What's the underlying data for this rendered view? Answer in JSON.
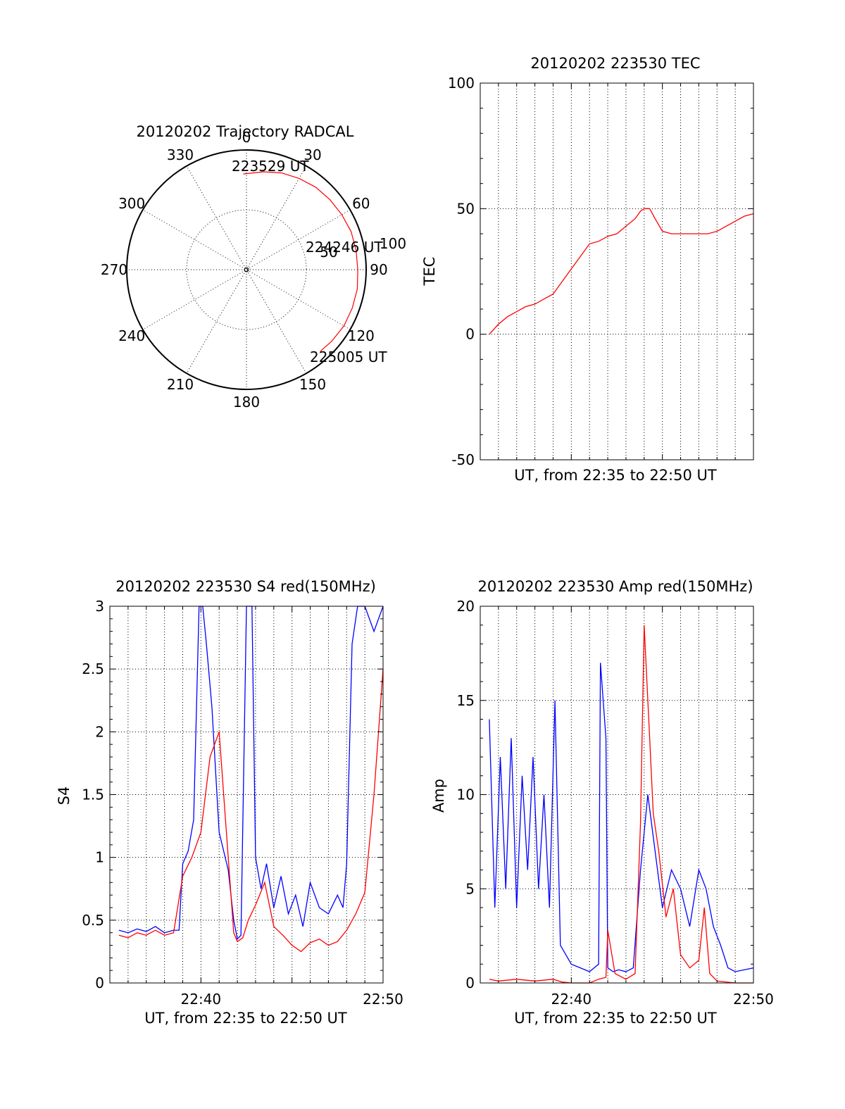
{
  "colors": {
    "red": "#ff0000",
    "blue": "#0000ff",
    "axis": "#000000"
  },
  "chart_data": [
    {
      "type": "polar",
      "title": "20120202 Trajectory RADCAL",
      "azimuth_labels": [
        "0",
        "30",
        "60",
        "90",
        "120",
        "150",
        "180",
        "210",
        "240",
        "270",
        "300",
        "330"
      ],
      "radius_labels": [
        "50",
        "100"
      ],
      "rlim": [
        0,
        100
      ],
      "grid": true,
      "start_label": "223529 UT",
      "mid_label": "224246 UT",
      "end_label": "225005 UT",
      "series": [
        {
          "color": "red",
          "points": [
            {
              "az": 358,
              "r": 80
            },
            {
              "az": 10,
              "r": 83
            },
            {
              "az": 20,
              "r": 86
            },
            {
              "az": 30,
              "r": 88
            },
            {
              "az": 40,
              "r": 90
            },
            {
              "az": 50,
              "r": 91
            },
            {
              "az": 60,
              "r": 92
            },
            {
              "az": 70,
              "r": 93
            },
            {
              "az": 80,
              "r": 93
            },
            {
              "az": 90,
              "r": 93
            },
            {
              "az": 100,
              "r": 94
            },
            {
              "az": 110,
              "r": 94
            },
            {
              "az": 120,
              "r": 94
            },
            {
              "az": 130,
              "r": 93
            },
            {
              "az": 138,
              "r": 92
            }
          ]
        }
      ]
    },
    {
      "type": "line",
      "title": "20120202 223530 TEC",
      "xlabel": "UT, from 22:35 to 22:50 UT",
      "ylabel": "TEC",
      "xlim": [
        0,
        15
      ],
      "ylim": [
        -50,
        100
      ],
      "yticks": [
        "-50",
        "0",
        "50",
        "100"
      ],
      "xticks": [],
      "grid": true,
      "series": [
        {
          "color": "red",
          "x": [
            0.5,
            1.0,
            1.5,
            2.0,
            2.5,
            3.0,
            3.5,
            4.0,
            4.5,
            5.0,
            5.5,
            6.0,
            6.5,
            7.0,
            7.5,
            8.0,
            8.5,
            8.8,
            9.0,
            9.3,
            9.6,
            10.0,
            10.5,
            11.0,
            11.5,
            12.0,
            12.5,
            13.0,
            13.5,
            14.0,
            14.5,
            15.0
          ],
          "y": [
            0,
            4,
            7,
            9,
            11,
            12,
            14,
            16,
            21,
            26,
            31,
            36,
            37,
            39,
            40,
            43,
            46,
            49,
            50,
            50,
            46,
            41,
            40,
            40,
            40,
            40,
            40,
            41,
            43,
            45,
            47,
            48
          ]
        }
      ]
    },
    {
      "type": "line",
      "title": "20120202 223530 S4 red(150MHz)",
      "xlabel": "UT, from 22:35 to 22:50 UT",
      "ylabel": "S4",
      "xlim": [
        0,
        15
      ],
      "ylim": [
        0,
        3
      ],
      "yticks": [
        "0",
        "0.5",
        "1",
        "1.5",
        "2",
        "2.5",
        "3"
      ],
      "xticks": [
        {
          "x": 5,
          "label": "22:40"
        },
        {
          "x": 15,
          "label": "22:50"
        }
      ],
      "grid": true,
      "series": [
        {
          "color": "blue",
          "x": [
            0.5,
            1.0,
            1.5,
            2.0,
            2.5,
            3.0,
            3.5,
            3.8,
            4.0,
            4.3,
            4.6,
            4.9,
            5.1,
            5.3,
            5.6,
            6.0,
            6.5,
            6.8,
            7.0,
            7.2,
            7.5,
            7.8,
            8.0,
            8.3,
            8.6,
            9.0,
            9.4,
            9.8,
            10.2,
            10.6,
            11.0,
            11.5,
            12.0,
            12.5,
            12.8,
            13.0,
            13.3,
            13.6,
            14.0,
            14.5,
            15.0
          ],
          "y": [
            0.42,
            0.4,
            0.43,
            0.41,
            0.45,
            0.4,
            0.42,
            0.42,
            0.95,
            1.05,
            1.3,
            3.0,
            3.0,
            2.7,
            2.2,
            1.2,
            0.9,
            0.5,
            0.35,
            0.38,
            3.0,
            3.0,
            1.0,
            0.75,
            0.95,
            0.6,
            0.85,
            0.55,
            0.7,
            0.45,
            0.8,
            0.6,
            0.55,
            0.7,
            0.6,
            0.95,
            2.7,
            3.0,
            3.0,
            2.8,
            3.0
          ]
        },
        {
          "color": "red",
          "x": [
            0.5,
            1.0,
            1.5,
            2.0,
            2.5,
            3.0,
            3.5,
            4.0,
            4.5,
            5.0,
            5.5,
            6.0,
            6.5,
            6.8,
            7.0,
            7.3,
            7.6,
            8.0,
            8.5,
            9.0,
            9.5,
            10.0,
            10.5,
            11.0,
            11.5,
            12.0,
            12.5,
            13.0,
            13.5,
            14.0,
            14.5,
            15.0
          ],
          "y": [
            0.38,
            0.36,
            0.4,
            0.38,
            0.42,
            0.38,
            0.4,
            0.85,
            1.0,
            1.2,
            1.8,
            2.0,
            1.0,
            0.4,
            0.33,
            0.36,
            0.5,
            0.62,
            0.8,
            0.45,
            0.38,
            0.3,
            0.25,
            0.32,
            0.35,
            0.3,
            0.33,
            0.42,
            0.55,
            0.72,
            1.5,
            2.5
          ]
        }
      ]
    },
    {
      "type": "line",
      "title": "20120202 223530 Amp red(150MHz)",
      "xlabel": "UT, from 22:35 to 22:50 UT",
      "ylabel": "Amp",
      "xlim": [
        0,
        15
      ],
      "ylim": [
        0,
        20
      ],
      "yticks": [
        "0",
        "5",
        "10",
        "15",
        "20"
      ],
      "xticks": [
        {
          "x": 5,
          "label": "22:40"
        },
        {
          "x": 15,
          "label": "22:50"
        }
      ],
      "grid": true,
      "series": [
        {
          "color": "blue",
          "x": [
            0.5,
            0.8,
            1.1,
            1.4,
            1.7,
            2.0,
            2.3,
            2.6,
            2.9,
            3.2,
            3.5,
            3.8,
            4.1,
            4.4,
            4.7,
            5.0,
            5.5,
            6.0,
            6.5,
            6.6,
            6.9,
            7.0,
            7.3,
            7.6,
            8.0,
            8.4,
            8.8,
            9.2,
            9.6,
            10.0,
            10.5,
            11.0,
            11.5,
            12.0,
            12.4,
            12.8,
            13.2,
            13.6,
            14.0,
            14.5,
            15.0
          ],
          "y": [
            14,
            4,
            12,
            5,
            13,
            4,
            11,
            6,
            12,
            5,
            10,
            4,
            15,
            2,
            1.5,
            1.0,
            0.8,
            0.6,
            1.0,
            17,
            13,
            0.8,
            0.6,
            0.7,
            0.6,
            0.8,
            6,
            10,
            7,
            4,
            6,
            5,
            3,
            6,
            5,
            3,
            2,
            0.8,
            0.6,
            0.7,
            0.8
          ]
        },
        {
          "color": "red",
          "x": [
            0.5,
            1.0,
            2.0,
            3.0,
            4.0,
            4.5,
            5.0,
            6.0,
            6.5,
            6.9,
            7.0,
            7.4,
            8.0,
            8.5,
            8.8,
            9.0,
            9.3,
            9.5,
            9.8,
            10.2,
            10.6,
            11.0,
            11.5,
            12.0,
            12.3,
            12.6,
            13.0,
            14.0,
            15.0
          ],
          "y": [
            0.2,
            0.1,
            0.2,
            0.1,
            0.2,
            0.05,
            0,
            0,
            0.2,
            0.3,
            2.8,
            0.5,
            0.2,
            0.5,
            8.5,
            19,
            13,
            9,
            7,
            3.5,
            5,
            1.5,
            0.8,
            1.2,
            4,
            0.5,
            0.1,
            0,
            0
          ]
        }
      ]
    }
  ]
}
